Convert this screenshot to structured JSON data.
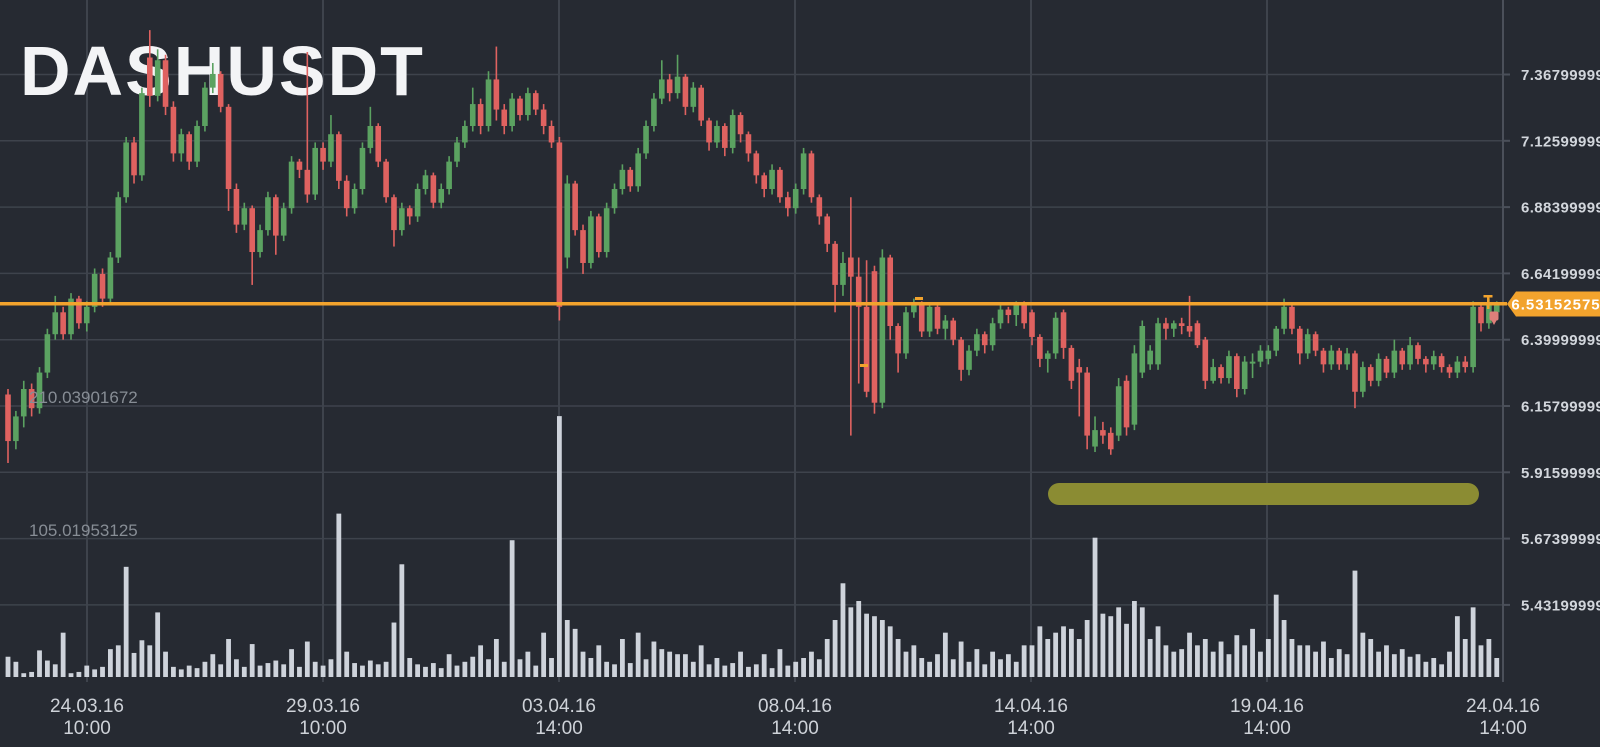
{
  "watermark": "DASHUSDT",
  "price_tag": {
    "label": "6.53152575"
  },
  "volume_labels": [
    "210.03901672",
    "105.01953125"
  ],
  "y_axis_labels": [
    "7.36799999",
    "7.12599999",
    "6.88399999",
    "6.64199999",
    "6.39999999",
    "6.15799999",
    "5.91599999",
    "5.67399999",
    "5.43199999"
  ],
  "x_axis_labels": [
    {
      "date": "24.03.16",
      "time": "10:00"
    },
    {
      "date": "29.03.16",
      "time": "10:00"
    },
    {
      "date": "03.04.16",
      "time": "14:00"
    },
    {
      "date": "08.04.16",
      "time": "14:00"
    },
    {
      "date": "14.04.16",
      "time": "14:00"
    },
    {
      "date": "19.04.16",
      "time": "14:00"
    },
    {
      "date": "24.04.16",
      "time": "14:00"
    }
  ],
  "colors": {
    "background": "#262a32",
    "grid": "#3e434c",
    "axis_line": "#4b505a",
    "candle_up": "#5ba261",
    "candle_down": "#df6260",
    "volume_bar": "#ced3db",
    "accent_orange": "#f2a32d",
    "highlight_olive": "#8b8c33",
    "watermark_text": "#f3f4f6",
    "pin_marker": "#dd7f7a"
  },
  "chart_data": {
    "type": "candlestick",
    "symbol": "DASHUSDT",
    "interval_hint": "4h",
    "last_price": 6.53152575,
    "y_range": [
      5.432,
      7.368
    ],
    "y_tick_step": 0.242,
    "x_range": [
      "24.03.16 10:00",
      "24.04.16 14:00"
    ],
    "grid": true,
    "volume_axis_labels": [
      210.03901672,
      105.01953125
    ],
    "ohlcv_format": [
      "open",
      "high",
      "low",
      "close",
      "volume"
    ],
    "candles": [
      [
        6.2,
        6.22,
        5.95,
        6.03,
        16
      ],
      [
        6.03,
        6.14,
        6.0,
        6.12,
        12
      ],
      [
        6.12,
        6.25,
        6.08,
        6.22,
        3
      ],
      [
        6.22,
        6.24,
        6.12,
        6.15,
        4
      ],
      [
        6.15,
        6.3,
        6.13,
        6.28,
        21
      ],
      [
        6.28,
        6.44,
        6.26,
        6.42,
        13
      ],
      [
        6.42,
        6.56,
        6.4,
        6.5,
        10
      ],
      [
        6.5,
        6.52,
        6.4,
        6.42,
        35
      ],
      [
        6.42,
        6.57,
        6.4,
        6.55,
        3
      ],
      [
        6.55,
        6.56,
        6.44,
        6.46,
        4
      ],
      [
        6.46,
        6.54,
        6.43,
        6.52,
        9
      ],
      [
        6.52,
        6.66,
        6.5,
        6.64,
        6
      ],
      [
        6.64,
        6.66,
        6.52,
        6.55,
        8
      ],
      [
        6.55,
        6.72,
        6.53,
        6.7,
        22
      ],
      [
        6.7,
        6.94,
        6.68,
        6.92,
        25
      ],
      [
        6.92,
        7.14,
        6.9,
        7.12,
        87
      ],
      [
        7.12,
        7.14,
        6.97,
        7.0,
        19
      ],
      [
        7.0,
        7.32,
        6.98,
        7.3,
        29
      ],
      [
        7.43,
        7.53,
        7.25,
        7.29,
        25
      ],
      [
        7.29,
        7.46,
        7.27,
        7.42,
        51
      ],
      [
        7.42,
        7.44,
        7.22,
        7.25,
        20
      ],
      [
        7.25,
        7.27,
        7.05,
        7.08,
        8
      ],
      [
        7.08,
        7.17,
        7.05,
        7.15,
        6
      ],
      [
        7.15,
        7.16,
        7.02,
        7.05,
        9
      ],
      [
        7.05,
        7.2,
        7.03,
        7.18,
        7
      ],
      [
        7.18,
        7.34,
        7.16,
        7.32,
        12
      ],
      [
        7.32,
        7.41,
        7.3,
        7.37,
        18
      ],
      [
        7.37,
        7.38,
        7.23,
        7.25,
        10
      ],
      [
        7.25,
        7.26,
        6.87,
        6.95,
        30
      ],
      [
        6.95,
        6.97,
        6.79,
        6.82,
        14
      ],
      [
        6.82,
        6.9,
        6.8,
        6.88,
        8
      ],
      [
        6.88,
        6.89,
        6.6,
        6.72,
        26
      ],
      [
        6.72,
        6.82,
        6.7,
        6.8,
        9
      ],
      [
        6.8,
        6.94,
        6.78,
        6.92,
        11
      ],
      [
        6.92,
        6.93,
        6.71,
        6.78,
        13
      ],
      [
        6.78,
        6.9,
        6.76,
        6.88,
        10
      ],
      [
        6.88,
        7.07,
        6.86,
        7.05,
        22
      ],
      [
        7.05,
        7.06,
        6.99,
        7.02,
        8
      ],
      [
        7.02,
        7.45,
        6.9,
        6.93,
        28
      ],
      [
        6.93,
        7.12,
        6.91,
        7.1,
        12
      ],
      [
        7.1,
        7.12,
        7.02,
        7.05,
        9
      ],
      [
        7.05,
        7.22,
        7.03,
        7.15,
        14
      ],
      [
        7.15,
        7.16,
        6.95,
        6.98,
        129
      ],
      [
        6.98,
        7.0,
        6.85,
        6.88,
        20
      ],
      [
        6.88,
        6.97,
        6.86,
        6.95,
        11
      ],
      [
        6.95,
        7.12,
        6.93,
        7.1,
        9
      ],
      [
        7.1,
        7.25,
        7.08,
        7.18,
        13
      ],
      [
        7.18,
        7.19,
        7.03,
        7.05,
        10
      ],
      [
        7.05,
        7.06,
        6.9,
        6.92,
        12
      ],
      [
        6.92,
        6.93,
        6.74,
        6.8,
        43
      ],
      [
        6.8,
        6.9,
        6.78,
        6.88,
        89
      ],
      [
        6.88,
        6.89,
        6.82,
        6.85,
        15
      ],
      [
        6.85,
        6.97,
        6.83,
        6.95,
        10
      ],
      [
        6.95,
        7.02,
        6.93,
        7.0,
        8
      ],
      [
        7.0,
        7.01,
        6.88,
        6.9,
        11
      ],
      [
        6.9,
        6.97,
        6.88,
        6.95,
        7
      ],
      [
        6.95,
        7.07,
        6.93,
        7.05,
        18
      ],
      [
        7.05,
        7.14,
        7.03,
        7.12,
        9
      ],
      [
        7.12,
        7.2,
        7.1,
        7.18,
        12
      ],
      [
        7.18,
        7.32,
        7.16,
        7.26,
        16
      ],
      [
        7.26,
        7.28,
        7.15,
        7.18,
        25
      ],
      [
        7.18,
        7.38,
        7.16,
        7.35,
        14
      ],
      [
        7.35,
        7.47,
        7.2,
        7.24,
        30
      ],
      [
        7.24,
        7.26,
        7.15,
        7.18,
        12
      ],
      [
        7.18,
        7.3,
        7.16,
        7.28,
        108
      ],
      [
        7.28,
        7.29,
        7.2,
        7.22,
        14
      ],
      [
        7.22,
        7.32,
        7.2,
        7.3,
        20
      ],
      [
        7.3,
        7.31,
        7.22,
        7.24,
        9
      ],
      [
        7.24,
        7.26,
        7.15,
        7.18,
        35
      ],
      [
        7.18,
        7.2,
        7.1,
        7.12,
        15
      ],
      [
        7.12,
        7.14,
        6.47,
        6.52,
        206
      ],
      [
        6.7,
        7.0,
        6.66,
        6.97,
        45
      ],
      [
        6.97,
        6.98,
        6.78,
        6.8,
        38
      ],
      [
        6.8,
        6.82,
        6.64,
        6.68,
        20
      ],
      [
        6.68,
        6.87,
        6.66,
        6.85,
        15
      ],
      [
        6.85,
        6.86,
        6.7,
        6.72,
        25
      ],
      [
        6.72,
        6.9,
        6.7,
        6.88,
        12
      ],
      [
        6.88,
        6.97,
        6.86,
        6.95,
        10
      ],
      [
        6.95,
        7.04,
        6.93,
        7.02,
        30
      ],
      [
        7.02,
        7.03,
        6.94,
        6.96,
        11
      ],
      [
        6.96,
        7.1,
        6.94,
        7.08,
        35
      ],
      [
        7.08,
        7.2,
        7.06,
        7.18,
        14
      ],
      [
        7.18,
        7.3,
        7.16,
        7.28,
        28
      ],
      [
        7.28,
        7.42,
        7.26,
        7.35,
        22
      ],
      [
        7.35,
        7.37,
        7.27,
        7.3,
        20
      ],
      [
        7.3,
        7.44,
        7.28,
        7.36,
        18
      ],
      [
        7.36,
        7.37,
        7.22,
        7.25,
        18
      ],
      [
        7.25,
        7.34,
        7.23,
        7.32,
        12
      ],
      [
        7.32,
        7.33,
        7.18,
        7.2,
        25
      ],
      [
        7.2,
        7.21,
        7.09,
        7.12,
        10
      ],
      [
        7.12,
        7.2,
        7.1,
        7.18,
        15
      ],
      [
        7.18,
        7.19,
        7.07,
        7.1,
        9
      ],
      [
        7.1,
        7.24,
        7.08,
        7.22,
        11
      ],
      [
        7.22,
        7.23,
        7.12,
        7.15,
        20
      ],
      [
        7.15,
        7.16,
        7.05,
        7.08,
        8
      ],
      [
        7.08,
        7.09,
        6.97,
        7.0,
        10
      ],
      [
        7.0,
        7.01,
        6.92,
        6.95,
        18
      ],
      [
        6.95,
        7.04,
        6.93,
        7.02,
        7
      ],
      [
        7.02,
        7.03,
        6.9,
        6.92,
        22
      ],
      [
        6.92,
        6.94,
        6.85,
        6.88,
        9
      ],
      [
        6.88,
        6.97,
        6.86,
        6.95,
        12
      ],
      [
        6.95,
        7.1,
        6.93,
        7.08,
        15
      ],
      [
        7.08,
        7.09,
        6.9,
        6.92,
        20
      ],
      [
        6.92,
        6.93,
        6.82,
        6.85,
        14
      ],
      [
        6.85,
        6.86,
        6.72,
        6.75,
        30
      ],
      [
        6.75,
        6.76,
        6.5,
        6.6,
        45
      ],
      [
        6.6,
        6.72,
        6.56,
        6.68,
        74
      ],
      [
        6.7,
        6.92,
        6.05,
        6.63,
        55
      ],
      [
        6.63,
        6.7,
        6.24,
        6.52,
        60
      ],
      [
        6.52,
        6.69,
        6.19,
        6.21,
        50
      ],
      [
        6.65,
        6.67,
        6.13,
        6.17,
        48
      ],
      [
        6.17,
        6.73,
        6.15,
        6.7,
        45
      ],
      [
        6.7,
        6.71,
        6.4,
        6.45,
        40
      ],
      [
        6.45,
        6.46,
        6.28,
        6.35,
        30
      ],
      [
        6.35,
        6.52,
        6.33,
        6.5,
        20
      ],
      [
        6.5,
        6.55,
        6.48,
        6.53,
        25
      ],
      [
        6.53,
        6.54,
        6.41,
        6.43,
        15
      ],
      [
        6.43,
        6.53,
        6.41,
        6.52,
        12
      ],
      [
        6.52,
        6.53,
        6.42,
        6.44,
        18
      ],
      [
        6.44,
        6.49,
        6.4,
        6.47,
        35
      ],
      [
        6.47,
        6.48,
        6.38,
        6.4,
        14
      ],
      [
        6.4,
        6.41,
        6.25,
        6.29,
        28
      ],
      [
        6.29,
        6.38,
        6.27,
        6.36,
        12
      ],
      [
        6.36,
        6.44,
        6.34,
        6.42,
        22
      ],
      [
        6.42,
        6.43,
        6.35,
        6.38,
        10
      ],
      [
        6.38,
        6.48,
        6.36,
        6.46,
        20
      ],
      [
        6.46,
        6.53,
        6.44,
        6.51,
        14
      ],
      [
        6.51,
        6.52,
        6.46,
        6.49,
        18
      ],
      [
        6.49,
        6.54,
        6.45,
        6.53,
        12
      ],
      [
        6.53,
        6.54,
        6.44,
        6.46,
        25
      ],
      [
        6.5,
        6.51,
        6.38,
        6.41,
        25
      ],
      [
        6.41,
        6.42,
        6.3,
        6.33,
        40
      ],
      [
        6.33,
        6.36,
        6.28,
        6.35,
        30
      ],
      [
        6.35,
        6.5,
        6.33,
        6.48,
        35
      ],
      [
        6.5,
        6.51,
        6.33,
        6.37,
        40
      ],
      [
        6.37,
        6.38,
        6.22,
        6.25,
        38
      ],
      [
        6.3,
        6.33,
        6.12,
        6.28,
        30
      ],
      [
        6.28,
        6.3,
        6.0,
        6.05,
        45
      ],
      [
        6.01,
        6.12,
        5.99,
        6.07,
        110
      ],
      [
        6.07,
        6.1,
        6.02,
        6.05,
        50
      ],
      [
        6.06,
        6.08,
        5.98,
        6.0,
        48
      ],
      [
        6.05,
        6.26,
        6.03,
        6.23,
        55
      ],
      [
        6.25,
        6.27,
        6.05,
        6.08,
        42
      ],
      [
        6.09,
        6.38,
        6.07,
        6.35,
        60
      ],
      [
        6.28,
        6.47,
        6.26,
        6.45,
        55
      ],
      [
        6.31,
        6.38,
        6.29,
        6.36,
        30
      ],
      [
        6.31,
        6.48,
        6.29,
        6.46,
        40
      ],
      [
        6.46,
        6.48,
        6.4,
        6.44,
        25
      ],
      [
        6.44,
        6.47,
        6.41,
        6.46,
        20
      ],
      [
        6.46,
        6.48,
        6.42,
        6.45,
        22
      ],
      [
        6.45,
        6.56,
        6.41,
        6.43,
        35
      ],
      [
        6.46,
        6.47,
        6.37,
        6.38,
        25
      ],
      [
        6.4,
        6.41,
        6.22,
        6.25,
        30
      ],
      [
        6.25,
        6.33,
        6.24,
        6.3,
        20
      ],
      [
        6.3,
        6.31,
        6.24,
        6.26,
        28
      ],
      [
        6.26,
        6.36,
        6.24,
        6.34,
        18
      ],
      [
        6.34,
        6.35,
        6.19,
        6.22,
        33
      ],
      [
        6.22,
        6.34,
        6.2,
        6.32,
        25
      ],
      [
        6.32,
        6.35,
        6.26,
        6.32,
        38
      ],
      [
        6.32,
        6.38,
        6.3,
        6.36,
        20
      ],
      [
        6.33,
        6.38,
        6.31,
        6.36,
        30
      ],
      [
        6.36,
        6.45,
        6.34,
        6.44,
        65
      ],
      [
        6.44,
        6.55,
        6.42,
        6.52,
        45
      ],
      [
        6.52,
        6.53,
        6.42,
        6.44,
        30
      ],
      [
        6.44,
        6.45,
        6.31,
        6.35,
        25
      ],
      [
        6.35,
        6.44,
        6.33,
        6.42,
        25
      ],
      [
        6.42,
        6.43,
        6.34,
        6.36,
        20
      ],
      [
        6.36,
        6.37,
        6.28,
        6.31,
        28
      ],
      [
        6.31,
        6.38,
        6.29,
        6.36,
        15
      ],
      [
        6.36,
        6.37,
        6.29,
        6.31,
        22
      ],
      [
        6.31,
        6.37,
        6.29,
        6.35,
        18
      ],
      [
        6.35,
        6.36,
        6.15,
        6.21,
        84
      ],
      [
        6.21,
        6.32,
        6.19,
        6.3,
        35
      ],
      [
        6.3,
        6.31,
        6.23,
        6.25,
        30
      ],
      [
        6.25,
        6.35,
        6.23,
        6.33,
        20
      ],
      [
        6.33,
        6.34,
        6.26,
        6.28,
        25
      ],
      [
        6.28,
        6.4,
        6.26,
        6.36,
        18
      ],
      [
        6.36,
        6.37,
        6.29,
        6.31,
        22
      ],
      [
        6.31,
        6.41,
        6.29,
        6.38,
        16
      ],
      [
        6.38,
        6.39,
        6.31,
        6.33,
        18
      ],
      [
        6.33,
        6.34,
        6.28,
        6.31,
        12
      ],
      [
        6.31,
        6.36,
        6.29,
        6.34,
        15
      ],
      [
        6.34,
        6.35,
        6.28,
        6.3,
        10
      ],
      [
        6.3,
        6.31,
        6.26,
        6.28,
        20
      ],
      [
        6.28,
        6.34,
        6.26,
        6.32,
        48
      ],
      [
        6.32,
        6.34,
        6.28,
        6.3,
        30
      ],
      [
        6.3,
        6.54,
        6.28,
        6.52,
        55
      ],
      [
        6.52,
        6.53,
        6.43,
        6.46,
        25
      ],
      [
        6.46,
        6.55,
        6.44,
        6.53,
        30
      ],
      [
        6.5,
        6.54,
        6.48,
        6.53,
        15
      ]
    ]
  }
}
